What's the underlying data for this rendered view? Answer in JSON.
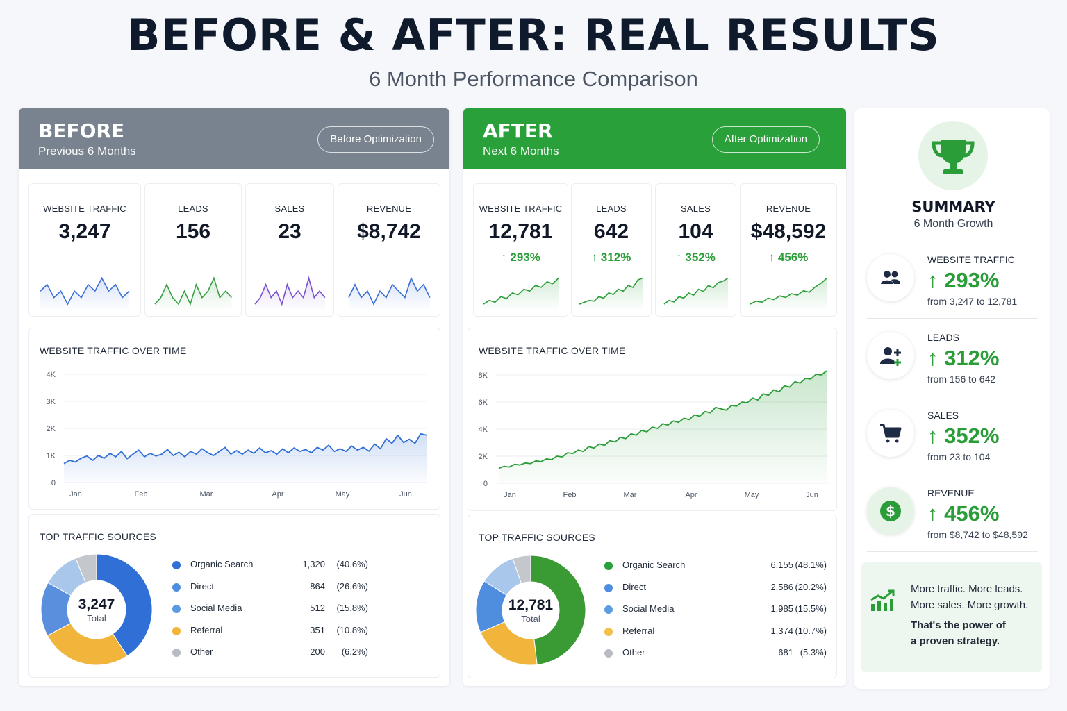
{
  "header": {
    "title": "BEFORE & AFTER: REAL RESULTS",
    "subtitle": "6 Month Performance Comparison"
  },
  "colors": {
    "before_header": "#78838f",
    "after_header": "#2aa03a",
    "growth_green": "#2a9d38",
    "blue_line": "#2f6fd6"
  },
  "before": {
    "title": "BEFORE",
    "subtitle": "Previous 6 Months",
    "pill": "Before Optimization",
    "kpis": [
      {
        "label": "WEBSITE TRAFFIC",
        "value": "3,247",
        "spark_color": "#3a6fd8",
        "spark": [
          5,
          6,
          4,
          5,
          3,
          5,
          4,
          6,
          5,
          7,
          5,
          6,
          4,
          5
        ]
      },
      {
        "label": "LEADS",
        "value": "156",
        "spark_color": "#3aa046",
        "spark": [
          3,
          4,
          6,
          4,
          3,
          5,
          3,
          6,
          4,
          5,
          7,
          4,
          5,
          4
        ]
      },
      {
        "label": "SALES",
        "value": "23",
        "spark_color": "#7a4fd0",
        "spark": [
          3,
          4,
          6,
          4,
          5,
          3,
          6,
          4,
          5,
          4,
          7,
          4,
          5,
          4
        ]
      },
      {
        "label": "REVENUE",
        "value": "$8,742",
        "spark_color": "#3a6fd8",
        "spark": [
          4,
          6,
          4,
          5,
          3,
          5,
          4,
          6,
          5,
          4,
          7,
          5,
          6,
          4
        ]
      }
    ],
    "traffic_title": "WEBSITE TRAFFIC OVER TIME",
    "sources_title": "TOP TRAFFIC SOURCES",
    "donut_total": "3,247",
    "donut_total_label": "Total"
  },
  "after": {
    "title": "AFTER",
    "subtitle": "Next 6 Months",
    "pill": "After Optimization",
    "kpis": [
      {
        "label": "WEBSITE TRAFFIC",
        "value": "12,781",
        "change": "↑ 293%",
        "spark_color": "#2a9d38",
        "spark": [
          1,
          2,
          1.5,
          3,
          2.5,
          4,
          3.5,
          5,
          4.5,
          6,
          5.5,
          7,
          6.5,
          8
        ]
      },
      {
        "label": "LEADS",
        "value": "642",
        "change": "↑ 312%",
        "spark_color": "#2a9d38",
        "spark": [
          1,
          1.5,
          2,
          1.8,
          3,
          2.6,
          4,
          3.6,
          5,
          4.5,
          6,
          5.5,
          7.5,
          8
        ]
      },
      {
        "label": "SALES",
        "value": "104",
        "change": "↑ 352%",
        "spark_color": "#2a9d38",
        "spark": [
          1,
          2,
          1.6,
          3,
          2.6,
          4,
          3.4,
          5,
          4.4,
          6,
          5.4,
          6.8,
          7.2,
          8
        ]
      },
      {
        "label": "REVENUE",
        "value": "$48,592",
        "change": "↑ 456%",
        "spark_color": "#2a9d38",
        "spark": [
          1,
          1.8,
          1.5,
          2.6,
          2.2,
          3.2,
          2.8,
          3.8,
          3.4,
          4.6,
          4.2,
          5.6,
          6.6,
          8
        ]
      }
    ],
    "traffic_title": "WEBSITE TRAFFIC OVER TIME",
    "sources_title": "TOP TRAFFIC SOURCES",
    "donut_total": "12,781",
    "donut_total_label": "Total"
  },
  "chart_data": [
    {
      "type": "line",
      "title": "WEBSITE TRAFFIC OVER TIME",
      "panel": "BEFORE",
      "x_ticks": [
        "Jan",
        "Feb",
        "Mar",
        "Apr",
        "May",
        "Jun"
      ],
      "y_ticks": [
        "0",
        "1K",
        "2K",
        "3K",
        "4K"
      ],
      "ylim": [
        0,
        4000
      ],
      "color": "#2f6fd6",
      "values": [
        700,
        820,
        760,
        900,
        980,
        820,
        1000,
        900,
        1080,
        950,
        1150,
        880,
        1050,
        1200,
        950,
        1080,
        980,
        1050,
        1220,
        1000,
        1120,
        950,
        1150,
        1050,
        1250,
        1100,
        1000,
        1150,
        1300,
        1050,
        1180,
        1050,
        1200,
        1080,
        1280,
        1100,
        1180,
        1050,
        1250,
        1100,
        1280,
        1150,
        1220,
        1100,
        1300,
        1200,
        1380,
        1150,
        1250,
        1150,
        1350,
        1200,
        1300,
        1160,
        1420,
        1250,
        1620,
        1450,
        1750,
        1480,
        1600,
        1450,
        1800,
        1750
      ]
    },
    {
      "type": "area",
      "title": "WEBSITE TRAFFIC OVER TIME",
      "panel": "AFTER",
      "x_ticks": [
        "Jan",
        "Feb",
        "Mar",
        "Apr",
        "May",
        "Jun"
      ],
      "y_ticks": [
        "0",
        "2K",
        "4K",
        "6K",
        "8K"
      ],
      "ylim": [
        0,
        8000
      ],
      "color": "#2a9d38",
      "values": [
        1100,
        1250,
        1200,
        1400,
        1350,
        1500,
        1450,
        1650,
        1600,
        1800,
        1750,
        2000,
        1950,
        2250,
        2200,
        2450,
        2350,
        2700,
        2600,
        2900,
        2800,
        3150,
        3050,
        3400,
        3300,
        3650,
        3550,
        3900,
        3800,
        4150,
        4050,
        4400,
        4300,
        4600,
        4500,
        4800,
        4700,
        5050,
        4950,
        5300,
        5200,
        5600,
        5500,
        5400,
        5750,
        5700,
        6000,
        5950,
        6300,
        6150,
        6600,
        6500,
        6900,
        6750,
        7200,
        7100,
        7500,
        7400,
        7750,
        7700,
        8050,
        8000,
        8300
      ]
    },
    {
      "type": "pie",
      "title": "TOP TRAFFIC SOURCES",
      "panel": "BEFORE",
      "slices": [
        {
          "name": "Organic Search",
          "value": 1320,
          "pct": "(40.6%)",
          "color": "#2f6fd6"
        },
        {
          "name": "Direct",
          "value": 864,
          "pct": "(26.6%)",
          "color": "#f2b53c"
        },
        {
          "name": "Social Media",
          "value": 512,
          "pct": "(15.8%)",
          "color": "#5a8fdd"
        },
        {
          "name": "Referral",
          "value": 351,
          "pct": "(10.8%)",
          "color": "#a9c7ea"
        },
        {
          "name": "Other",
          "value": 200,
          "pct": "(6.2%)",
          "color": "#c4c7cc"
        }
      ],
      "legend": [
        {
          "name": "Organic Search",
          "value": "1,320",
          "pct": "(40.6%)",
          "color": "#2f6fd6"
        },
        {
          "name": "Direct",
          "value": "864",
          "pct": "(26.6%)",
          "color": "#4f8ddf"
        },
        {
          "name": "Social Media",
          "value": "512",
          "pct": "(15.8%)",
          "color": "#5b9be0"
        },
        {
          "name": "Referral",
          "value": "351",
          "pct": "(10.8%)",
          "color": "#f2b53c"
        },
        {
          "name": "Other",
          "value": "200",
          "pct": "(6.2%)",
          "color": "#b8bcc2"
        }
      ]
    },
    {
      "type": "pie",
      "title": "TOP TRAFFIC SOURCES",
      "panel": "AFTER",
      "slices": [
        {
          "name": "Organic Search",
          "value": 6155,
          "pct": "(48.1%)",
          "color": "#3a9a34"
        },
        {
          "name": "Direct",
          "value": 2586,
          "pct": "(20.2%)",
          "color": "#f2b53c"
        },
        {
          "name": "Social Media",
          "value": 1985,
          "pct": "(15.5%)",
          "color": "#4f8ddf"
        },
        {
          "name": "Referral",
          "value": 1374,
          "pct": "(10.7%)",
          "color": "#a9c7ea"
        },
        {
          "name": "Other",
          "value": 681,
          "pct": "(5.3%)",
          "color": "#c4c7cc"
        }
      ],
      "legend": [
        {
          "name": "Organic Search",
          "value": "6,155",
          "pct": "(48.1%)",
          "color": "#2aa03a"
        },
        {
          "name": "Direct",
          "value": "2,586",
          "pct": "(20.2%)",
          "color": "#4f8ddf"
        },
        {
          "name": "Social Media",
          "value": "1,985",
          "pct": "(15.5%)",
          "color": "#5b9be0"
        },
        {
          "name": "Referral",
          "value": "1,374",
          "pct": "(10.7%)",
          "color": "#f2c14a"
        },
        {
          "name": "Other",
          "value": "681",
          "pct": "(5.3%)",
          "color": "#b8bcc2"
        }
      ]
    }
  ],
  "summary": {
    "title": "SUMMARY",
    "subtitle": "6 Month Growth",
    "items": [
      {
        "icon": "users-icon",
        "label": "WEBSITE TRAFFIC",
        "change": "↑ 293%",
        "from": "from 3,247 to 12,781"
      },
      {
        "icon": "add-user-icon",
        "label": "LEADS",
        "change": "↑ 312%",
        "from": "from 156 to 642"
      },
      {
        "icon": "cart-icon",
        "label": "SALES",
        "change": "↑ 352%",
        "from": "from 23 to 104"
      },
      {
        "icon": "dollar-icon",
        "label": "REVENUE",
        "change": "↑ 456%",
        "from": "from $8,742 to $48,592"
      }
    ],
    "callout": {
      "line1": "More traffic. More leads.",
      "line2": "More sales. More growth.",
      "line3": "That's the power of",
      "line4": "a proven strategy."
    }
  }
}
